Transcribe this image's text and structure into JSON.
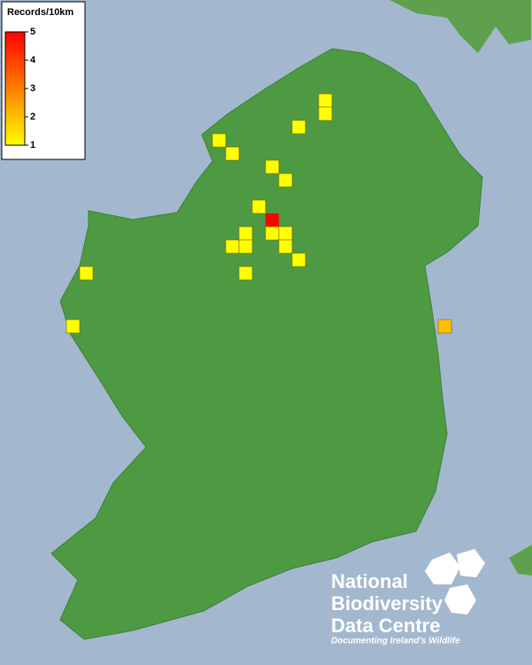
{
  "legend": {
    "title": "Records/10km",
    "ticks": [
      1,
      2,
      3,
      4,
      5
    ],
    "range": [
      1,
      5
    ],
    "colors": [
      "#ffff00",
      "#ff0000"
    ]
  },
  "records": {
    "values": [
      1,
      1,
      1,
      1,
      1,
      1,
      1,
      1,
      5,
      1,
      1,
      1,
      1,
      1,
      1,
      1,
      1,
      1,
      1,
      2
    ]
  },
  "logo": {
    "lines": [
      "National",
      "Biodiversity",
      "Data Centre"
    ],
    "tagline": "Documenting Ireland's Wildlife"
  }
}
